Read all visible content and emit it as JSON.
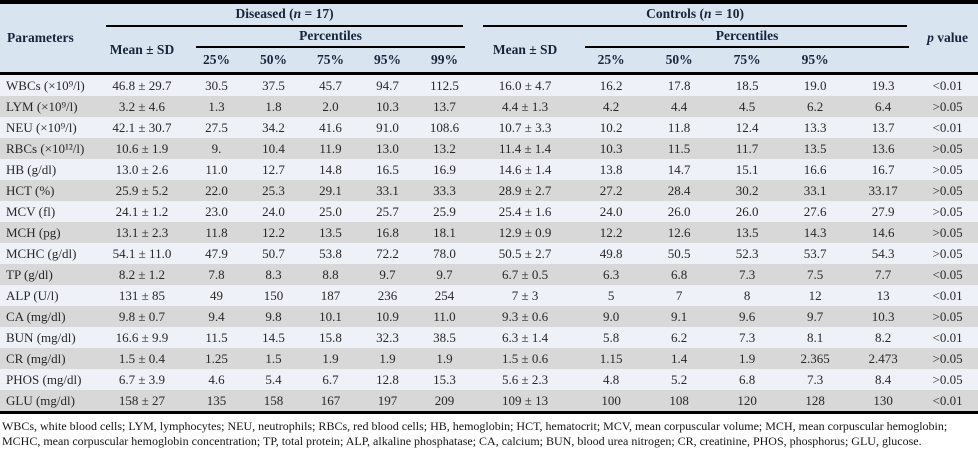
{
  "table": {
    "col_parameters": "Parameters",
    "groups": [
      {
        "pre": "Diseased (",
        "var": "n",
        "post": " = 17)"
      },
      {
        "pre": "Controls (",
        "var": "n",
        "post": " = 10)"
      }
    ],
    "mean_sd": "Mean ± SD",
    "percentiles_label": "Percentiles",
    "diseased_pct": [
      "25%",
      "50%",
      "75%",
      "95%",
      "99%"
    ],
    "controls_pct": [
      "25%",
      "50%",
      "75%",
      "95%",
      ""
    ],
    "p_value": {
      "var": "p",
      "post": " value"
    },
    "rows": [
      {
        "param": "WBCs (×10⁹/l)",
        "d_mean": "46.8 ± 29.7",
        "d": [
          "30.5",
          "37.5",
          "45.7",
          "94.7",
          "112.5"
        ],
        "c_mean": "16.0 ± 4.7",
        "c": [
          "16.2",
          "17.8",
          "18.5",
          "19.0",
          "19.3"
        ],
        "p": "<0.01"
      },
      {
        "param": "LYM (×10⁹/l)",
        "d_mean": "3.2 ± 4.6",
        "d": [
          "1.3",
          "1.8",
          "2.0",
          "10.3",
          "13.7"
        ],
        "c_mean": "4.4 ± 1.3",
        "c": [
          "4.2",
          "4.4",
          "4.5",
          "6.2",
          "6.4"
        ],
        "p": ">0.05"
      },
      {
        "param": "NEU (×10⁹/l)",
        "d_mean": "42.1 ± 30.7",
        "d": [
          "27.5",
          "34.2",
          "41.6",
          "91.0",
          "108.6"
        ],
        "c_mean": "10.7 ± 3.3",
        "c": [
          "10.2",
          "11.8",
          "12.4",
          "13.3",
          "13.7"
        ],
        "p": "<0.01"
      },
      {
        "param": "RBCs (×10¹²/l)",
        "d_mean": "10.6 ± 1.9",
        "d": [
          "9.",
          "10.4",
          "11.9",
          "13.0",
          "13.2"
        ],
        "c_mean": "11.4 ± 1.4",
        "c": [
          "10.3",
          "11.5",
          "11.7",
          "13.5",
          "13.6"
        ],
        "p": ">0.05"
      },
      {
        "param": "HB (g/dl)",
        "d_mean": "13.0 ± 2.6",
        "d": [
          "11.0",
          "12.7",
          "14.8",
          "16.5",
          "16.9"
        ],
        "c_mean": "14.6 ± 1.4",
        "c": [
          "13.8",
          "14.7",
          "15.1",
          "16.6",
          "16.7"
        ],
        "p": ">0.05"
      },
      {
        "param": "HCT (%)",
        "d_mean": "25.9 ± 5.2",
        "d": [
          "22.0",
          "25.3",
          "29.1",
          "33.1",
          "33.3"
        ],
        "c_mean": "28.9 ± 2.7",
        "c": [
          "27.2",
          "28.4",
          "30.2",
          "33.1",
          "33.17"
        ],
        "p": ">0.05"
      },
      {
        "param": "MCV (fl)",
        "d_mean": "24.1 ± 1.2",
        "d": [
          "23.0",
          "24.0",
          "25.0",
          "25.7",
          "25.9"
        ],
        "c_mean": "25.4 ± 1.6",
        "c": [
          "24.0",
          "26.0",
          "26.0",
          "27.6",
          "27.9"
        ],
        "p": ">0.05"
      },
      {
        "param": "MCH (pg)",
        "d_mean": "13.1 ± 2.3",
        "d": [
          "11.8",
          "12.2",
          "13.5",
          "16.8",
          "18.1"
        ],
        "c_mean": "12.9 ± 0.9",
        "c": [
          "12.2",
          "12.6",
          "13.5",
          "14.3",
          "14.6"
        ],
        "p": ">0.05"
      },
      {
        "param": "MCHC (g/dl)",
        "d_mean": "54.1 ± 11.0",
        "d": [
          "47.9",
          "50.7",
          "53.8",
          "72.2",
          "78.0"
        ],
        "c_mean": "50.5 ± 2.7",
        "c": [
          "49.8",
          "50.5",
          "52.3",
          "53.7",
          "54.3"
        ],
        "p": ">0.05"
      },
      {
        "param": "TP (g/dl)",
        "d_mean": "8.2 ± 1.2",
        "d": [
          "7.8",
          "8.3",
          "8.8",
          "9.7",
          "9.7"
        ],
        "c_mean": "6.7 ± 0.5",
        "c": [
          "6.3",
          "6.8",
          "7.3",
          "7.5",
          "7.7"
        ],
        "p": "<0.05"
      },
      {
        "param": "ALP (U/l)",
        "d_mean": "131 ± 85",
        "d": [
          "49",
          "150",
          "187",
          "236",
          "254"
        ],
        "c_mean": "7 ± 3",
        "c": [
          "5",
          "7",
          "8",
          "12",
          "13"
        ],
        "p": "<0.01"
      },
      {
        "param": "CA (mg/dl)",
        "d_mean": "9.8 ± 0.7",
        "d": [
          "9.4",
          "9.8",
          "10.1",
          "10.9",
          "11.0"
        ],
        "c_mean": "9.3 ± 0.6",
        "c": [
          "9.0",
          "9.1",
          "9.6",
          "9.7",
          "10.3"
        ],
        "p": ">0.05"
      },
      {
        "param": "BUN (mg/dl)",
        "d_mean": "16.6 ± 9.9",
        "d": [
          "11.5",
          "14.5",
          "15.8",
          "32.3",
          "38.5"
        ],
        "c_mean": "6.3 ± 1.4",
        "c": [
          "5.8",
          "6.2",
          "7.3",
          "8.1",
          "8.2"
        ],
        "p": "<0.01"
      },
      {
        "param": "CR (mg/dl)",
        "d_mean": "1.5 ± 0.4",
        "d": [
          "1.25",
          "1.5",
          "1.9",
          "1.9",
          "1.9"
        ],
        "c_mean": "1.5 ± 0.6",
        "c": [
          "1.15",
          "1.4",
          "1.9",
          "2.365",
          "2.473"
        ],
        "p": ">0.05"
      },
      {
        "param": "PHOS (mg/dl)",
        "d_mean": "6.7 ± 3.9",
        "d": [
          "4.6",
          "5.4",
          "6.7",
          "12.8",
          "15.3"
        ],
        "c_mean": "5.6 ± 2.3",
        "c": [
          "4.8",
          "5.2",
          "6.8",
          "7.3",
          "8.4"
        ],
        "p": ">0.05"
      },
      {
        "param": "GLU (mg/dl)",
        "d_mean": "158 ± 27",
        "d": [
          "135",
          "158",
          "167",
          "197",
          "209"
        ],
        "c_mean": "109 ± 13",
        "c": [
          "100",
          "108",
          "120",
          "128",
          "130"
        ],
        "p": "<0.01"
      }
    ]
  },
  "footnote": {
    "lines": [
      "WBCs, white blood cells; LYM, lymphocytes; NEU, neutrophils; RBCs, red blood cells; HB, hemoglobin; HCT, hematocrit; MCV, mean corpuscular volume; MCH, mean corpuscular hemoglobin;",
      "MCHC, mean corpuscular hemoglobin concentration; TP, total protein; ALP, alkaline phosphatase; CA, calcium; BUN, blood urea nitrogen; CR, creatinine, PHOS, phosphorus; GLU, glucose."
    ]
  },
  "colors": {
    "header_bg": "#d8e5f1",
    "row_light": "#eef2f8",
    "row_gray": "#d8d8d8",
    "rule": "#000000",
    "header_text": "#17243a"
  }
}
